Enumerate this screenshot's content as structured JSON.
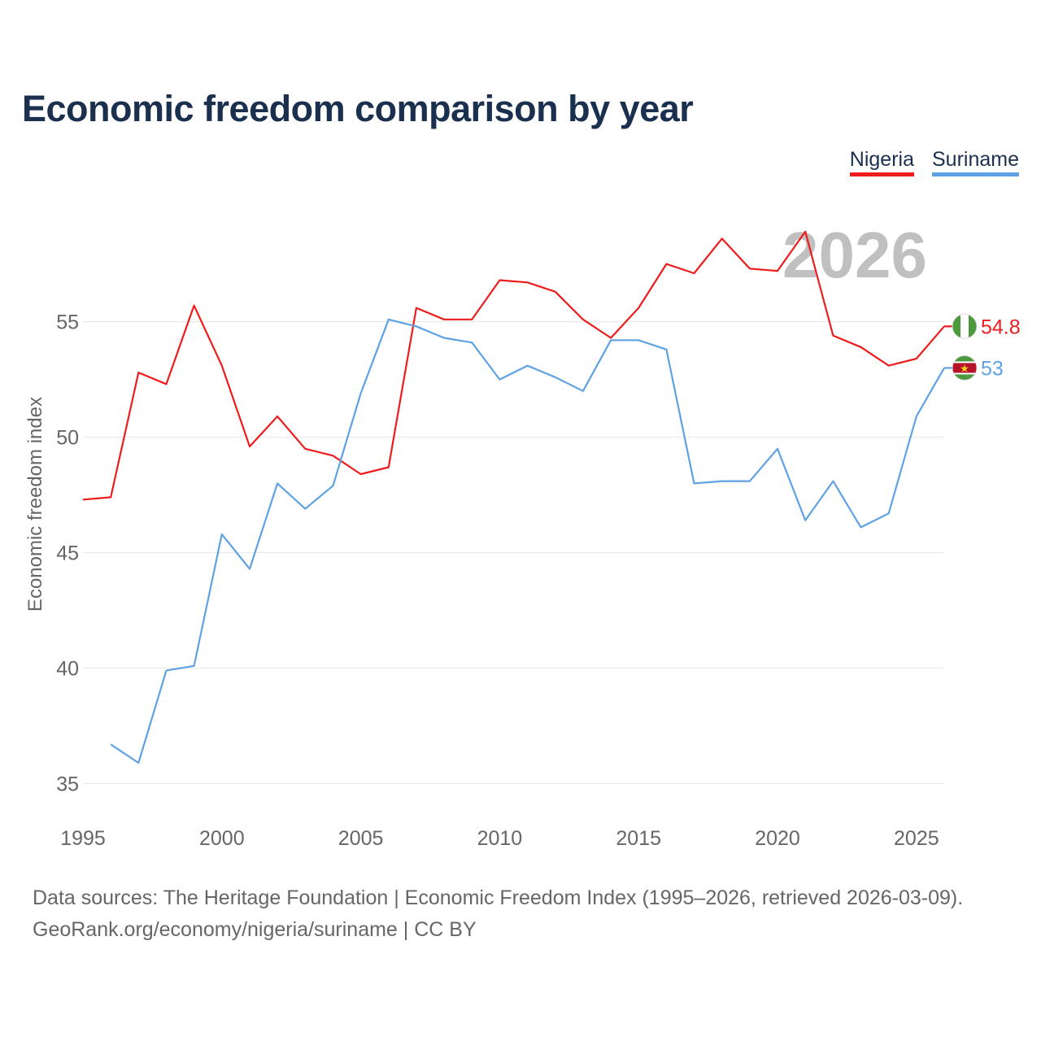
{
  "title": "Economic freedom comparison by year",
  "colors": {
    "nigeria": "#ee1c1c",
    "suriname": "#5fa2e3",
    "title": "#1b2f4e",
    "muted": "#666666",
    "grid": "#e6e6e6",
    "watermark": "#c0c0c0"
  },
  "footer": {
    "line1": "Data sources: The Heritage Foundation | Economic Freedom Index (1995–2026, retrieved 2026-03-09).",
    "line2": "GeoRank.org/economy/nigeria/suriname | CC BY"
  },
  "chart_data": {
    "type": "line",
    "title": "Economic freedom comparison by year",
    "xlabel": "",
    "ylabel": "Economic freedom index",
    "xlim": [
      1995,
      2026
    ],
    "ylim": [
      34,
      59
    ],
    "x_ticks": [
      "1995",
      "2000",
      "2005",
      "2010",
      "2015",
      "2020",
      "2025"
    ],
    "y_ticks": [
      "35",
      "40",
      "45",
      "50",
      "55"
    ],
    "grid": true,
    "legend_position": "top-right",
    "year_label": "2026",
    "series": [
      {
        "name": "Nigeria",
        "color": "#ee1c1c",
        "flag_icon": "nigeria-flag-icon",
        "end_label": "54.8",
        "points": [
          [
            1995,
            47.3
          ],
          [
            1996,
            47.4
          ],
          [
            1997,
            52.8
          ],
          [
            1998,
            52.3
          ],
          [
            1999,
            55.7
          ],
          [
            2000,
            53.1
          ],
          [
            2001,
            49.6
          ],
          [
            2002,
            50.9
          ],
          [
            2003,
            49.5
          ],
          [
            2004,
            49.2
          ],
          [
            2005,
            48.4
          ],
          [
            2006,
            48.7
          ],
          [
            2007,
            55.6
          ],
          [
            2008,
            55.1
          ],
          [
            2009,
            55.1
          ],
          [
            2010,
            56.8
          ],
          [
            2011,
            56.7
          ],
          [
            2012,
            56.3
          ],
          [
            2013,
            55.1
          ],
          [
            2014,
            54.3
          ],
          [
            2015,
            55.6
          ],
          [
            2016,
            57.5
          ],
          [
            2017,
            57.1
          ],
          [
            2018,
            58.6
          ],
          [
            2019,
            57.3
          ],
          [
            2020,
            57.2
          ],
          [
            2021,
            58.9
          ],
          [
            2022,
            54.4
          ],
          [
            2023,
            53.9
          ],
          [
            2024,
            53.1
          ],
          [
            2025,
            53.4
          ],
          [
            2026,
            54.8
          ]
        ]
      },
      {
        "name": "Suriname",
        "color": "#5fa2e3",
        "flag_icon": "suriname-flag-icon",
        "end_label": "53",
        "points": [
          [
            1996,
            36.7
          ],
          [
            1997,
            35.9
          ],
          [
            1998,
            39.9
          ],
          [
            1999,
            40.1
          ],
          [
            2000,
            45.8
          ],
          [
            2001,
            44.3
          ],
          [
            2002,
            48.0
          ],
          [
            2003,
            46.9
          ],
          [
            2004,
            47.9
          ],
          [
            2005,
            51.9
          ],
          [
            2006,
            55.1
          ],
          [
            2007,
            54.8
          ],
          [
            2008,
            54.3
          ],
          [
            2009,
            54.1
          ],
          [
            2010,
            52.5
          ],
          [
            2011,
            53.1
          ],
          [
            2012,
            52.6
          ],
          [
            2013,
            52.0
          ],
          [
            2014,
            54.2
          ],
          [
            2015,
            54.2
          ],
          [
            2016,
            53.8
          ],
          [
            2017,
            48.0
          ],
          [
            2018,
            48.1
          ],
          [
            2019,
            48.1
          ],
          [
            2020,
            49.5
          ],
          [
            2021,
            46.4
          ],
          [
            2022,
            48.1
          ],
          [
            2023,
            46.1
          ],
          [
            2024,
            46.7
          ],
          [
            2025,
            50.9
          ],
          [
            2026,
            53.0
          ]
        ]
      }
    ]
  }
}
